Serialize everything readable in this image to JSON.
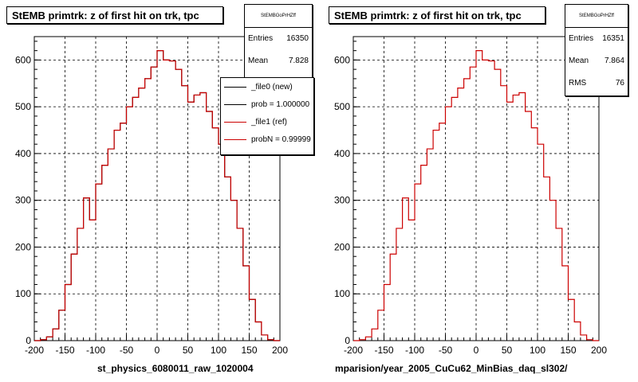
{
  "charts": [
    {
      "title": "StEMB primtrk: z of first hit on trk, tpc",
      "footer": "st_physics_6080011_raw_1020004",
      "stats": {
        "header": "StEMBGoPrHZff",
        "rows": [
          {
            "label": "Entries",
            "value": "16350"
          },
          {
            "label": "Mean",
            "value": "7.828"
          }
        ]
      },
      "legend": [
        {
          "label": "_file0 (new)",
          "color": "#000000"
        },
        {
          "label": "prob = 1.000000",
          "color": "#000000"
        },
        {
          "label": "_file1 (ref)",
          "color": "#cc0000"
        },
        {
          "label": "probN = 0.99999",
          "color": "#cc0000"
        }
      ]
    },
    {
      "title": "StEMB primtrk: z of first hit on trk, tpc",
      "footer": "mparision/year_2005_CuCu62_MinBias_daq_sl302/",
      "stats": {
        "header": "StEMBGoPrHZff",
        "rows": [
          {
            "label": "Entries",
            "value": "16351"
          },
          {
            "label": "Mean",
            "value": "7.864"
          },
          {
            "label": "RMS",
            "value": "76"
          }
        ]
      }
    }
  ],
  "chart_data": [
    {
      "type": "histogram",
      "title": "StEMB primtrk: z of first hit on trk, tpc",
      "xlim": [
        -200,
        200
      ],
      "ylim": [
        0,
        650
      ],
      "xticks": [
        -200,
        -150,
        -100,
        -50,
        0,
        50,
        100,
        150,
        200
      ],
      "yticks": [
        0,
        100,
        200,
        300,
        400,
        500,
        600
      ],
      "grid": true,
      "legend_position": "top-right",
      "bin_edges": [
        -200,
        -190,
        -180,
        -170,
        -160,
        -150,
        -140,
        -130,
        -120,
        -110,
        -100,
        -90,
        -80,
        -70,
        -60,
        -50,
        -40,
        -30,
        -20,
        -10,
        0,
        10,
        20,
        30,
        40,
        50,
        60,
        70,
        80,
        90,
        100,
        110,
        120,
        130,
        140,
        150,
        160,
        170,
        180,
        190,
        200
      ],
      "series": [
        {
          "name": "_file0 (new)",
          "color": "#000000",
          "values": [
            0,
            2,
            8,
            25,
            65,
            120,
            185,
            240,
            305,
            258,
            335,
            375,
            410,
            450,
            465,
            500,
            520,
            540,
            560,
            585,
            620,
            600,
            598,
            580,
            545,
            510,
            525,
            530,
            490,
            455,
            420,
            350,
            300,
            240,
            160,
            88,
            40,
            12,
            2,
            0
          ]
        },
        {
          "name": "_file1 (ref)",
          "color": "#cc0000",
          "values": [
            0,
            2,
            8,
            25,
            65,
            120,
            185,
            240,
            305,
            258,
            335,
            375,
            410,
            450,
            465,
            500,
            520,
            540,
            560,
            585,
            620,
            600,
            598,
            580,
            545,
            510,
            525,
            530,
            490,
            455,
            420,
            350,
            300,
            240,
            160,
            88,
            40,
            12,
            2,
            0
          ]
        }
      ]
    },
    {
      "type": "histogram",
      "title": "StEMB primtrk: z of first hit on trk, tpc",
      "xlim": [
        -200,
        200
      ],
      "ylim": [
        0,
        650
      ],
      "xticks": [
        -200,
        -150,
        -100,
        -50,
        0,
        50,
        100,
        150,
        200
      ],
      "yticks": [
        0,
        100,
        200,
        300,
        400,
        500,
        600
      ],
      "grid": true,
      "bin_edges": [
        -200,
        -190,
        -180,
        -170,
        -160,
        -150,
        -140,
        -130,
        -120,
        -110,
        -100,
        -90,
        -80,
        -70,
        -60,
        -50,
        -40,
        -30,
        -20,
        -10,
        0,
        10,
        20,
        30,
        40,
        50,
        60,
        70,
        80,
        90,
        100,
        110,
        120,
        130,
        140,
        150,
        160,
        170,
        180,
        190,
        200
      ],
      "series": [
        {
          "color": "#cc0000",
          "values": [
            0,
            2,
            8,
            25,
            65,
            120,
            185,
            240,
            305,
            258,
            335,
            375,
            410,
            450,
            465,
            500,
            520,
            540,
            560,
            585,
            620,
            600,
            598,
            580,
            545,
            510,
            525,
            530,
            490,
            455,
            420,
            350,
            300,
            240,
            160,
            88,
            40,
            12,
            2,
            0
          ]
        }
      ]
    }
  ]
}
